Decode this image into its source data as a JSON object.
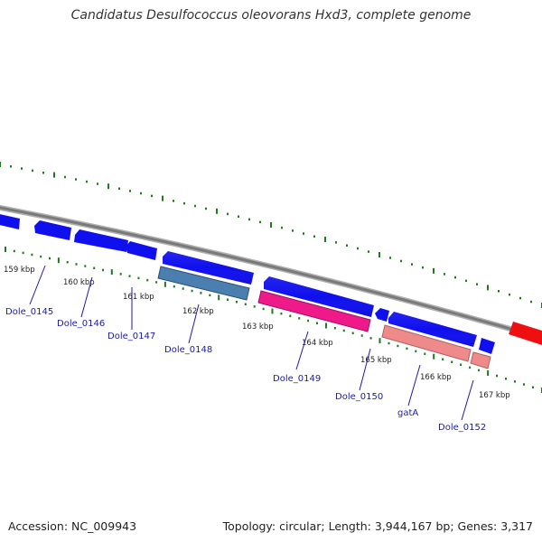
{
  "title": "Candidatus Desulfococcus oleovorans Hxd3, complete genome",
  "footer": {
    "accession": "Accession: NC_009943",
    "summary": "Topology: circular; Length: 3,944,167 bp; Genes: 3,317"
  },
  "colors": {
    "backbone": "#8a8a8a",
    "tick": "#1f7a1f",
    "cds": "#1010ee",
    "gene_steel": "#4a7fb0",
    "gene_magenta": "#ee1a8a",
    "gene_salmon": "#ee8a8a",
    "gene_red": "#ee1010",
    "label": "#1a1aa8"
  },
  "scale": {
    "unit": "kbp",
    "ticks": [
      "159 kbp",
      "160 kbp",
      "161 kbp",
      "162 kbp",
      "163 kbp",
      "164 kbp",
      "165 kbp",
      "166 kbp",
      "167 kbp"
    ]
  },
  "genes": [
    {
      "label": "Dole_0145"
    },
    {
      "label": "Dole_0146"
    },
    {
      "label": "Dole_0147"
    },
    {
      "label": "Dole_0148"
    },
    {
      "label": "Dole_0149"
    },
    {
      "label": "Dole_0150"
    },
    {
      "label": "gatA"
    },
    {
      "label": "Dole_0152"
    }
  ]
}
